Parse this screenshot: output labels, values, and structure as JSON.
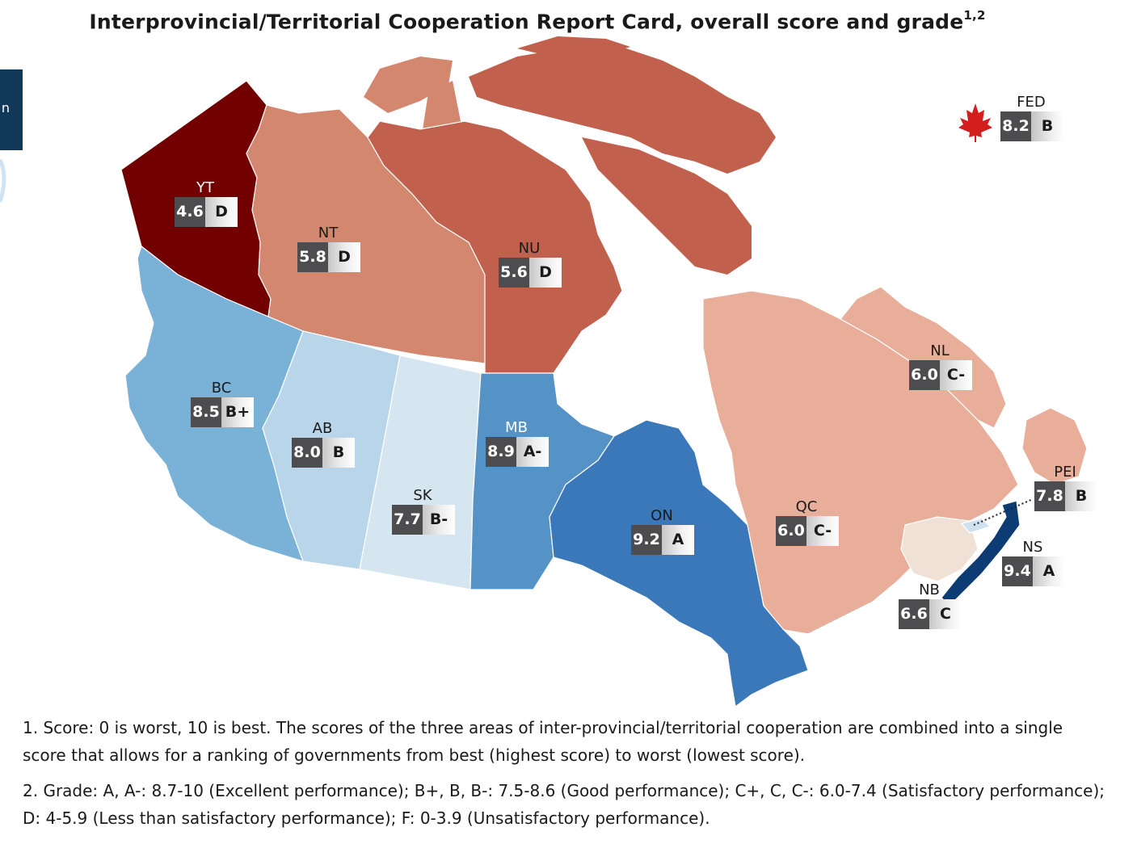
{
  "title": "Interprovincial/Territorial Cooperation Report Card, overall score and grade",
  "title_superscript": "1,2",
  "edge_tab_text": "n",
  "cards": {
    "FED": {
      "abbr": "FED",
      "score": "8.2",
      "grade": "B"
    },
    "YT": {
      "abbr": "YT",
      "score": "4.6",
      "grade": "D"
    },
    "NT": {
      "abbr": "NT",
      "score": "5.8",
      "grade": "D"
    },
    "NU": {
      "abbr": "NU",
      "score": "5.6",
      "grade": "D"
    },
    "BC": {
      "abbr": "BC",
      "score": "8.5",
      "grade": "B+"
    },
    "AB": {
      "abbr": "AB",
      "score": "8.0",
      "grade": "B"
    },
    "SK": {
      "abbr": "SK",
      "score": "7.7",
      "grade": "B-"
    },
    "MB": {
      "abbr": "MB",
      "score": "8.9",
      "grade": "A-"
    },
    "ON": {
      "abbr": "ON",
      "score": "9.2",
      "grade": "A"
    },
    "QC": {
      "abbr": "QC",
      "score": "6.0",
      "grade": "C-"
    },
    "NL": {
      "abbr": "NL",
      "score": "6.0",
      "grade": "C-"
    },
    "PEI": {
      "abbr": "PEI",
      "score": "7.8",
      "grade": "B"
    },
    "NS": {
      "abbr": "NS",
      "score": "9.4",
      "grade": "A"
    },
    "NB": {
      "abbr": "NB",
      "score": "6.6",
      "grade": "C"
    }
  },
  "region_colors": {
    "YT": "#730000",
    "NT": "#d4876f",
    "NU": "#c0604d",
    "BC": "#7ab1d6",
    "AB": "#b9d5ea",
    "SK": "#d6e6f0",
    "MB": "#5593c7",
    "ON": "#3a78ba",
    "QC": "#e8ae99",
    "NL": "#e8ae99",
    "NB": "#efe1d6",
    "NS": "#0d3c74",
    "PEI": "#cfe0ef",
    "maple_leaf": "#d41e1e",
    "edge_tab": "#12395a"
  },
  "notes": [
    "1. Score: 0 is worst, 10 is best. The scores of the three areas of inter-provincial/territorial cooperation are combined into a single score that allows for a ranking of governments from best (highest score) to worst (lowest score).",
    "2. Grade: A, A-: 8.7-10 (Excellent performance); B+, B, B-: 7.5-8.6 (Good performance); C+, C, C-: 6.0-7.4 (Satisfactory performance); D: 4-5.9 (Less than satisfactory performance); F: 0-3.9 (Unsatisfactory performance)."
  ]
}
